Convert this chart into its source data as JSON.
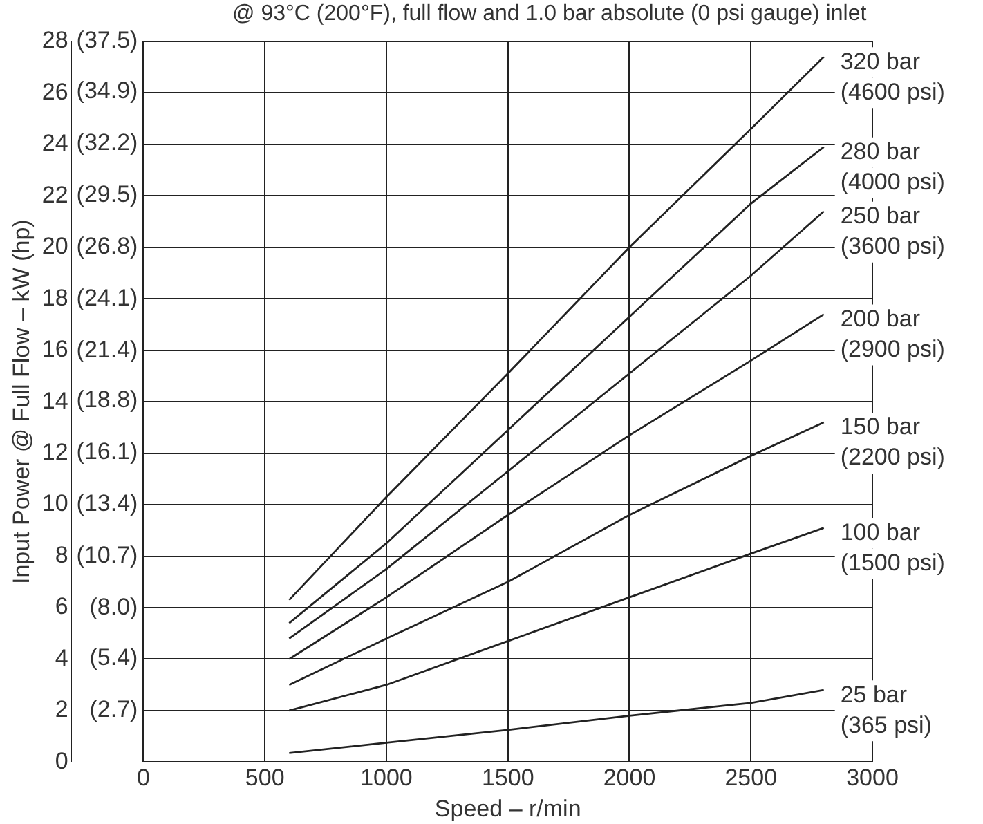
{
  "chart_data": {
    "type": "line",
    "subtitle": "@ 93°C (200°F), full flow and 1.0 bar absolute (0 psi gauge) inlet",
    "xlabel": "Speed – r/min",
    "ylabel": "Input Power @ Full Flow – kW (hp)",
    "x": [
      600,
      1000,
      1500,
      2000,
      2500,
      2800
    ],
    "series": [
      {
        "name": "320 bar\n(4600 psi)",
        "color": "#222222",
        "values": [
          6.3,
          10.3,
          15.1,
          20.0,
          24.6,
          27.4
        ]
      },
      {
        "name": "280 bar\n(4000 psi)",
        "color": "#222222",
        "values": [
          5.4,
          8.5,
          12.9,
          17.3,
          21.7,
          23.9
        ]
      },
      {
        "name": "250 bar\n(3600 psi)",
        "color": "#222222",
        "values": [
          4.8,
          7.5,
          11.3,
          15.1,
          18.9,
          21.4
        ]
      },
      {
        "name": "200 bar\n(2900 psi)",
        "color": "#222222",
        "values": [
          4.0,
          6.4,
          9.6,
          12.7,
          15.6,
          17.4
        ]
      },
      {
        "name": "150 bar\n(2200 psi)",
        "color": "#222222",
        "values": [
          3.0,
          4.8,
          7.0,
          9.6,
          11.9,
          13.2
        ]
      },
      {
        "name": "100 bar\n(1500 psi)",
        "color": "#222222",
        "values": [
          2.0,
          3.0,
          4.7,
          6.4,
          8.1,
          9.1
        ]
      },
      {
        "name": "25 bar\n(365 psi)",
        "color": "#222222",
        "values": [
          0.35,
          0.75,
          1.25,
          1.8,
          2.3,
          2.8
        ]
      }
    ],
    "xlim": [
      0,
      3000
    ],
    "xticks": [
      0,
      500,
      1000,
      1500,
      2000,
      2500,
      3000
    ],
    "ylim": [
      0,
      28
    ],
    "yticks": [
      0,
      2,
      4,
      6,
      8,
      10,
      12,
      14,
      16,
      18,
      20,
      22,
      24,
      26,
      28
    ],
    "y2lim": [
      0,
      37.5
    ],
    "y2ticks": [
      {
        "value": 2.7,
        "label": "(2.7)"
      },
      {
        "value": 5.4,
        "label": "(5.4)"
      },
      {
        "value": 8.0,
        "label": "(8.0)"
      },
      {
        "value": 10.7,
        "label": "(10.7)"
      },
      {
        "value": 13.4,
        "label": "(13.4)"
      },
      {
        "value": 16.1,
        "label": "(16.1)"
      },
      {
        "value": 18.8,
        "label": "(18.8)"
      },
      {
        "value": 21.4,
        "label": "(21.4)"
      },
      {
        "value": 24.1,
        "label": "(24.1)"
      },
      {
        "value": 26.8,
        "label": "(26.8)"
      },
      {
        "value": 29.5,
        "label": "(29.5)"
      },
      {
        "value": 32.2,
        "label": "(32.2)"
      },
      {
        "value": 34.9,
        "label": "(34.9)"
      },
      {
        "value": 37.5,
        "label": "(37.5)"
      }
    ],
    "grid": true,
    "legend": false,
    "marker": "none",
    "line_style": "solid"
  }
}
